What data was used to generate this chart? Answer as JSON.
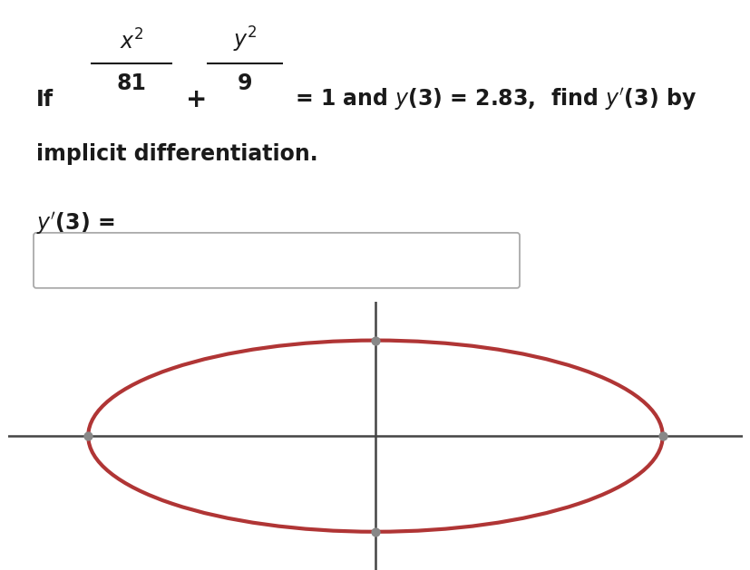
{
  "background_color": "#ffffff",
  "ellipse_color": "#b03535",
  "ellipse_linewidth": 3.0,
  "axes_color": "#444444",
  "axes_linewidth": 1.8,
  "dot_color": "#888888",
  "dot_size": 55,
  "font_size_main": 17,
  "text_color": "#1a1a1a"
}
